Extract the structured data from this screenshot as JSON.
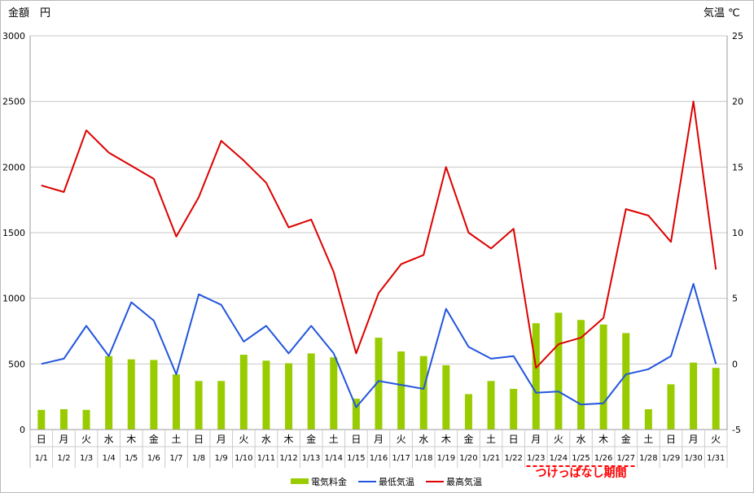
{
  "chart_data": {
    "type": "bar+line",
    "y_left_label": "金額　円",
    "y_right_label": "気温 ℃",
    "y_left_lim": [
      0,
      3000
    ],
    "y_left_ticks": [
      "0",
      "500",
      "1000",
      "1500",
      "2000",
      "2500",
      "3000"
    ],
    "y_right_lim": [
      -5,
      25
    ],
    "y_right_ticks": [
      "-5",
      "0",
      "5",
      "10",
      "15",
      "20",
      "25"
    ],
    "weekdays": [
      "日",
      "月",
      "火",
      "水",
      "木",
      "金",
      "土",
      "日",
      "月",
      "火",
      "水",
      "木",
      "金",
      "土",
      "日",
      "月",
      "火",
      "水",
      "木",
      "金",
      "土",
      "日",
      "月",
      "火",
      "水",
      "木",
      "金",
      "土",
      "日",
      "月",
      "火"
    ],
    "dates": [
      "1/1",
      "1/2",
      "1/3",
      "1/4",
      "1/5",
      "1/6",
      "1/7",
      "1/8",
      "1/9",
      "1/10",
      "1/11",
      "1/12",
      "1/13",
      "1/14",
      "1/15",
      "1/16",
      "1/17",
      "1/18",
      "1/19",
      "1/20",
      "1/21",
      "1/22",
      "1/23",
      "1/24",
      "1/25",
      "1/26",
      "1/27",
      "1/28",
      "1/29",
      "1/30",
      "1/31"
    ],
    "series": [
      {
        "name": "電気料金",
        "type": "bar",
        "axis": "left",
        "color": "#99cc00",
        "values": [
          150,
          155,
          150,
          560,
          535,
          530,
          420,
          370,
          370,
          570,
          525,
          505,
          580,
          550,
          235,
          700,
          595,
          560,
          490,
          270,
          370,
          310,
          810,
          890,
          835,
          800,
          735,
          155,
          345,
          510,
          470
        ]
      },
      {
        "name": "最低気温",
        "type": "line",
        "axis": "right",
        "color": "#2255dd",
        "values": [
          0.0,
          0.4,
          2.9,
          0.6,
          4.7,
          3.3,
          -0.8,
          5.3,
          4.5,
          1.7,
          2.9,
          0.8,
          2.9,
          0.8,
          -3.3,
          -1.3,
          -1.6,
          -1.9,
          4.2,
          1.3,
          0.4,
          0.6,
          -2.2,
          -2.1,
          -3.1,
          -3.0,
          -0.8,
          -0.4,
          0.6,
          6.1,
          0.0
        ]
      },
      {
        "name": "最高気温",
        "type": "line",
        "axis": "right",
        "color": "#dd0000",
        "values": [
          13.6,
          13.1,
          17.8,
          16.1,
          15.1,
          14.1,
          9.7,
          12.7,
          17.0,
          15.5,
          13.8,
          10.4,
          11.0,
          7.0,
          0.8,
          5.4,
          7.6,
          8.3,
          15.0,
          10.0,
          8.8,
          10.3,
          -0.3,
          1.5,
          2.0,
          3.5,
          11.8,
          11.3,
          9.3,
          20.0,
          7.2
        ]
      }
    ],
    "legend_position": "bottom",
    "grid": true,
    "annotation": {
      "text": "つけっぱなし期間",
      "from": "1/23",
      "to": "1/27",
      "color": "#ff0000"
    }
  }
}
